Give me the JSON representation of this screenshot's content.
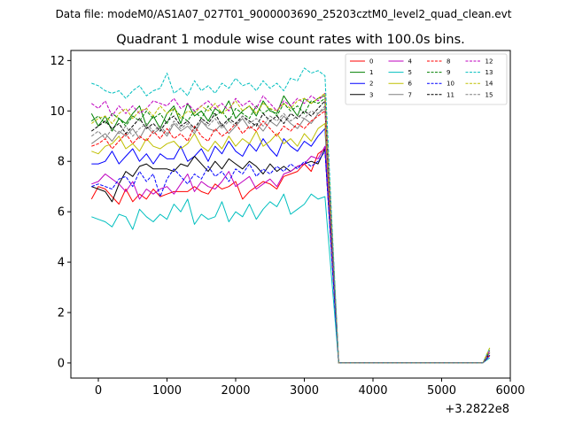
{
  "chart_data": {
    "type": "line",
    "suptitle": "Data file: modeM0/AS1A07_027T01_9000003690_25203cztM0_level2_quad_clean.evt",
    "title": "Quadrant 1 module wise count rates with 100.0s bins.",
    "xlabel": "",
    "ylabel": "",
    "x_offset_label": "+3.2822e8",
    "xlim": [
      -400,
      6000
    ],
    "ylim": [
      -0.6,
      12.4
    ],
    "x_ticks": [
      0,
      1000,
      2000,
      3000,
      4000,
      5000,
      6000
    ],
    "x_tick_labels": [
      "0",
      "1000",
      "2000",
      "3000",
      "4000",
      "5000",
      "6000"
    ],
    "y_ticks": [
      0,
      2,
      4,
      6,
      8,
      10,
      12
    ],
    "y_tick_labels": [
      "0",
      "2",
      "4",
      "6",
      "8",
      "10",
      "12"
    ],
    "grid": false,
    "legend_position": "top-right",
    "legend_columns": 4,
    "x": [
      -100,
      0,
      100,
      200,
      300,
      400,
      500,
      600,
      700,
      800,
      900,
      1000,
      1100,
      1200,
      1300,
      1400,
      1500,
      1600,
      1700,
      1800,
      1900,
      2000,
      2100,
      2200,
      2300,
      2400,
      2500,
      2600,
      2700,
      2800,
      2900,
      3000,
      3100,
      3200,
      3300,
      3400,
      3500,
      5600,
      5700
    ],
    "series": [
      {
        "name": "0",
        "color": "#ff0000",
        "dash": "solid",
        "values": [
          6.5,
          7.0,
          6.9,
          6.6,
          6.3,
          6.9,
          6.4,
          6.7,
          6.5,
          6.9,
          6.6,
          6.7,
          6.8,
          6.8,
          6.8,
          7.0,
          6.8,
          6.7,
          7.1,
          6.9,
          7.0,
          7.2,
          6.5,
          6.8,
          7.0,
          7.2,
          7.1,
          6.9,
          7.4,
          7.5,
          7.6,
          7.9,
          7.6,
          8.3,
          8.5,
          4.3,
          0.0,
          0.0,
          0.3
        ]
      },
      {
        "name": "1",
        "color": "#008000",
        "dash": "solid",
        "values": [
          9.9,
          9.4,
          9.8,
          9.2,
          9.7,
          9.5,
          9.9,
          10.2,
          9.4,
          9.8,
          9.3,
          9.9,
          10.2,
          9.5,
          10.3,
          9.8,
          10.0,
          9.6,
          10.1,
          9.9,
          10.4,
          9.7,
          10.0,
          10.2,
          9.8,
          10.4,
          10.0,
          9.9,
          10.6,
          10.2,
          9.8,
          10.5,
          10.3,
          10.5,
          10.6,
          5.4,
          0.0,
          0.0,
          0.4
        ]
      },
      {
        "name": "2",
        "color": "#0000ff",
        "dash": "solid",
        "values": [
          7.9,
          7.9,
          8.0,
          8.4,
          7.9,
          8.2,
          8.5,
          8.0,
          8.3,
          7.9,
          8.3,
          8.1,
          8.1,
          8.6,
          8.0,
          8.2,
          8.5,
          8.0,
          8.6,
          8.3,
          8.8,
          8.4,
          8.2,
          8.7,
          8.4,
          8.9,
          8.5,
          8.2,
          8.9,
          8.6,
          8.4,
          8.8,
          8.6,
          9.0,
          9.3,
          4.6,
          0.0,
          0.0,
          0.3
        ]
      },
      {
        "name": "3",
        "color": "#000000",
        "dash": "solid",
        "values": [
          7.0,
          6.9,
          6.8,
          6.4,
          7.1,
          7.6,
          7.4,
          7.8,
          7.9,
          7.7,
          7.7,
          7.7,
          7.6,
          7.9,
          7.8,
          8.2,
          7.9,
          7.6,
          8.0,
          7.7,
          8.1,
          7.9,
          7.7,
          8.0,
          7.8,
          7.5,
          7.9,
          7.6,
          7.8,
          7.6,
          7.8,
          7.9,
          8.0,
          7.9,
          8.5,
          4.2,
          0.0,
          0.0,
          0.3
        ]
      },
      {
        "name": "4",
        "color": "#bf00bf",
        "dash": "solid",
        "values": [
          7.1,
          7.2,
          7.5,
          7.3,
          7.1,
          6.8,
          7.2,
          6.5,
          6.9,
          6.7,
          6.9,
          7.0,
          6.7,
          7.1,
          7.5,
          6.8,
          7.2,
          7.0,
          6.9,
          7.2,
          7.6,
          7.0,
          7.2,
          7.4,
          6.9,
          7.1,
          7.3,
          7.0,
          7.5,
          7.6,
          7.8,
          7.9,
          8.2,
          8.1,
          8.6,
          4.3,
          0.0,
          0.0,
          0.3
        ]
      },
      {
        "name": "5",
        "color": "#00bfbf",
        "dash": "solid",
        "values": [
          5.8,
          5.7,
          5.6,
          5.4,
          5.9,
          5.8,
          5.3,
          6.1,
          5.8,
          5.6,
          5.9,
          5.7,
          6.3,
          6.0,
          6.5,
          5.5,
          5.9,
          5.7,
          5.8,
          6.4,
          5.6,
          6.0,
          5.8,
          6.3,
          5.7,
          6.1,
          6.4,
          6.2,
          6.7,
          5.9,
          6.1,
          6.3,
          6.7,
          6.5,
          6.6,
          3.3,
          0.0,
          0.0,
          0.2
        ]
      },
      {
        "name": "6",
        "color": "#bfbf00",
        "dash": "solid",
        "values": [
          8.4,
          8.3,
          8.6,
          8.7,
          9.0,
          8.5,
          8.7,
          8.4,
          8.9,
          8.6,
          8.5,
          8.7,
          8.8,
          8.5,
          8.7,
          9.1,
          8.6,
          8.4,
          8.8,
          8.5,
          9.0,
          8.6,
          8.9,
          8.7,
          9.2,
          8.6,
          8.8,
          9.1,
          8.7,
          8.9,
          8.6,
          9.1,
          8.8,
          9.3,
          9.5,
          4.8,
          0.0,
          0.0,
          0.4
        ]
      },
      {
        "name": "7",
        "color": "#808080",
        "dash": "solid",
        "values": [
          8.7,
          8.9,
          9.1,
          8.8,
          9.2,
          9.0,
          9.3,
          8.9,
          9.4,
          9.1,
          9.3,
          9.0,
          9.5,
          9.2,
          9.4,
          9.1,
          9.6,
          9.3,
          9.2,
          9.5,
          9.1,
          9.4,
          9.7,
          9.3,
          9.5,
          9.2,
          9.6,
          9.4,
          9.8,
          9.5,
          9.3,
          9.7,
          9.5,
          9.9,
          10.1,
          5.0,
          0.0,
          0.0,
          0.3
        ]
      },
      {
        "name": "8",
        "color": "#ff0000",
        "dash": "dashed",
        "values": [
          8.6,
          8.7,
          8.9,
          8.5,
          8.8,
          9.1,
          8.7,
          9.0,
          8.8,
          9.2,
          8.9,
          9.3,
          8.9,
          9.1,
          8.8,
          9.4,
          9.0,
          8.8,
          9.3,
          9.0,
          9.2,
          9.5,
          9.1,
          9.4,
          9.2,
          9.6,
          9.3,
          9.0,
          9.4,
          9.2,
          9.5,
          9.3,
          9.6,
          9.8,
          10.0,
          5.0,
          0.0,
          0.0,
          0.3
        ]
      },
      {
        "name": "9",
        "color": "#008000",
        "dash": "dashed",
        "values": [
          9.6,
          9.8,
          9.5,
          9.9,
          9.7,
          9.4,
          9.8,
          9.6,
          10.0,
          9.7,
          9.9,
          9.5,
          10.1,
          9.8,
          9.6,
          10.0,
          9.7,
          10.2,
          9.8,
          10.0,
          9.6,
          10.1,
          9.9,
          9.7,
          10.2,
          9.9,
          10.1,
          9.8,
          10.3,
          10.0,
          10.2,
          9.9,
          10.4,
          10.3,
          10.5,
          5.2,
          0.0,
          0.0,
          0.5
        ]
      },
      {
        "name": "10",
        "color": "#0000ff",
        "dash": "dashed",
        "values": [
          7.0,
          7.1,
          7.0,
          6.9,
          7.3,
          7.4,
          7.0,
          7.6,
          7.2,
          7.5,
          6.6,
          7.3,
          7.7,
          7.4,
          7.1,
          7.5,
          7.3,
          7.8,
          7.4,
          7.6,
          7.2,
          7.7,
          7.5,
          7.9,
          7.4,
          7.7,
          7.5,
          7.8,
          7.6,
          7.9,
          7.7,
          8.0,
          7.8,
          8.0,
          8.4,
          4.2,
          0.0,
          0.0,
          0.3
        ]
      },
      {
        "name": "11",
        "color": "#000000",
        "dash": "dashed",
        "values": [
          9.2,
          9.4,
          9.6,
          9.3,
          9.5,
          9.1,
          9.4,
          9.7,
          9.3,
          9.5,
          9.2,
          9.6,
          9.8,
          9.4,
          9.6,
          9.3,
          9.7,
          9.5,
          9.9,
          9.4,
          9.7,
          9.5,
          9.8,
          9.6,
          9.4,
          9.9,
          9.6,
          9.8,
          9.5,
          9.9,
          9.7,
          10.0,
          9.8,
          10.1,
          10.4,
          5.1,
          0.0,
          0.0,
          0.4
        ]
      },
      {
        "name": "12",
        "color": "#bf00bf",
        "dash": "dashed",
        "values": [
          10.3,
          10.1,
          10.4,
          9.8,
          10.2,
          9.9,
          10.2,
          9.9,
          10.1,
          10.4,
          10.3,
          10.2,
          10.5,
          10.1,
          10.3,
          10.0,
          10.2,
          10.4,
          10.1,
          10.3,
          10.0,
          10.5,
          10.2,
          10.4,
          10.1,
          10.6,
          10.3,
          10.0,
          10.4,
          10.2,
          10.5,
          10.3,
          10.6,
          10.4,
          10.7,
          5.3,
          0.0,
          0.0,
          0.5
        ]
      },
      {
        "name": "13",
        "color": "#00bfbf",
        "dash": "dashed",
        "values": [
          11.1,
          11.0,
          10.8,
          10.7,
          10.8,
          10.5,
          10.8,
          11.0,
          10.6,
          10.8,
          10.9,
          11.5,
          10.7,
          10.9,
          10.6,
          11.2,
          10.8,
          11.0,
          10.7,
          11.1,
          10.9,
          11.3,
          11.0,
          11.1,
          10.8,
          11.2,
          10.9,
          11.1,
          10.8,
          11.3,
          11.2,
          11.7,
          11.5,
          11.6,
          11.4,
          5.7,
          0.0,
          0.0,
          0.6
        ]
      },
      {
        "name": "14",
        "color": "#bfbf00",
        "dash": "dashed",
        "values": [
          9.5,
          9.7,
          9.8,
          9.5,
          9.9,
          10.1,
          9.7,
          10.0,
          10.1,
          9.8,
          10.2,
          9.9,
          10.1,
          9.7,
          10.0,
          9.9,
          10.2,
          10.0,
          10.3,
          9.9,
          10.1,
          10.4,
          10.0,
          10.2,
          9.9,
          10.3,
          10.1,
          10.0,
          10.3,
          10.1,
          10.4,
          10.5,
          10.3,
          10.5,
          10.7,
          5.3,
          0.0,
          0.0,
          0.6
        ]
      },
      {
        "name": "15",
        "color": "#808080",
        "dash": "dashed",
        "values": [
          9.0,
          9.2,
          8.9,
          9.3,
          9.1,
          9.4,
          9.0,
          9.3,
          9.5,
          9.2,
          9.4,
          9.1,
          9.6,
          9.3,
          9.5,
          9.2,
          9.6,
          9.4,
          9.7,
          9.3,
          9.6,
          9.4,
          9.8,
          9.5,
          9.7,
          9.4,
          9.8,
          9.6,
          9.9,
          9.6,
          9.8,
          9.7,
          10.0,
          9.9,
          10.2,
          5.1,
          0.0,
          0.0,
          0.4
        ]
      }
    ]
  }
}
